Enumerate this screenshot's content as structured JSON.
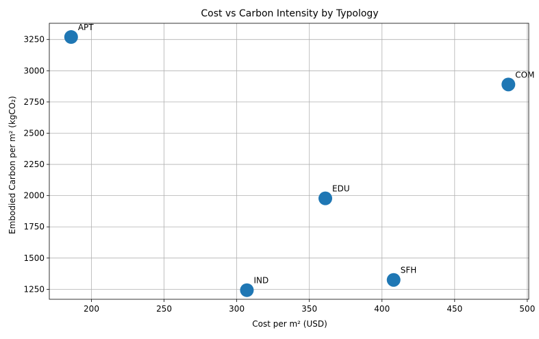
{
  "chart_data": {
    "type": "scatter",
    "title": "Cost vs Carbon Intensity by Typology",
    "xlabel": "Cost per m² (USD)",
    "ylabel": "Embodied Carbon per m² (kgCO₂)",
    "xlim": [
      171,
      501
    ],
    "ylim": [
      1170,
      3380
    ],
    "xticks": [
      200,
      250,
      300,
      350,
      400,
      450,
      500
    ],
    "yticks": [
      1250,
      1500,
      1750,
      2000,
      2250,
      2500,
      2750,
      3000,
      3250
    ],
    "grid": true,
    "marker_color": "#1f77b4",
    "points": [
      {
        "label": "APT",
        "x": 186,
        "y": 3270
      },
      {
        "label": "COM",
        "x": 487,
        "y": 2890
      },
      {
        "label": "EDU",
        "x": 361,
        "y": 1978
      },
      {
        "label": "IND",
        "x": 307,
        "y": 1243
      },
      {
        "label": "SFH",
        "x": 408,
        "y": 1325
      }
    ]
  }
}
